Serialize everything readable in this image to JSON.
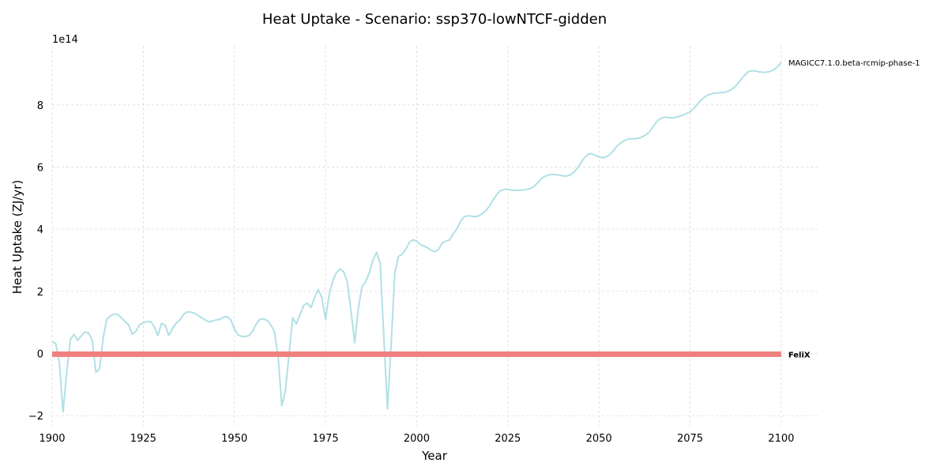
{
  "chart_data": {
    "type": "line",
    "title": "Heat Uptake - Scenario: ssp370-lowNTCF-gidden",
    "xlabel": "Year",
    "ylabel": "Heat Uptake (ZJ/yr)",
    "y_offset_label": "1e14",
    "y_scale": 100000000000000.0,
    "xlim": [
      1900,
      2110
    ],
    "ylim": [
      -2.35,
      9.9
    ],
    "x_ticks": [
      1900,
      1925,
      1950,
      1975,
      2000,
      2025,
      2050,
      2075,
      2100
    ],
    "x_tick_labels": [
      "1900",
      "1925",
      "1950",
      "1975",
      "2000",
      "2025",
      "2050",
      "2075",
      "2100"
    ],
    "y_ticks": [
      -2,
      0,
      2,
      4,
      6,
      8
    ],
    "y_tick_labels": [
      "−2",
      "0",
      "2",
      "4",
      "6",
      "8"
    ],
    "grid": true,
    "series": [
      {
        "name": "MAGICC7.1.0.beta-rcmip-phase-1",
        "color": "#b0e0e6",
        "label_bold": false,
        "points": [
          [
            1900,
            0.38
          ],
          [
            1901,
            0.32
          ],
          [
            1902,
            -0.3
          ],
          [
            1903,
            -1.88
          ],
          [
            1904,
            -0.6
          ],
          [
            1905,
            0.45
          ],
          [
            1906,
            0.62
          ],
          [
            1907,
            0.42
          ],
          [
            1908,
            0.57
          ],
          [
            1909,
            0.7
          ],
          [
            1910,
            0.66
          ],
          [
            1911,
            0.42
          ],
          [
            1912,
            -0.6
          ],
          [
            1913,
            -0.5
          ],
          [
            1914,
            0.5
          ],
          [
            1915,
            1.1
          ],
          [
            1916,
            1.22
          ],
          [
            1917,
            1.27
          ],
          [
            1918,
            1.26
          ],
          [
            1919,
            1.15
          ],
          [
            1920,
            1.03
          ],
          [
            1921,
            0.92
          ],
          [
            1922,
            0.62
          ],
          [
            1923,
            0.72
          ],
          [
            1924,
            0.93
          ],
          [
            1925,
            0.99
          ],
          [
            1926,
            1.03
          ],
          [
            1927,
            1.03
          ],
          [
            1928,
            0.87
          ],
          [
            1929,
            0.58
          ],
          [
            1930,
            0.97
          ],
          [
            1931,
            0.91
          ],
          [
            1932,
            0.58
          ],
          [
            1933,
            0.8
          ],
          [
            1934,
            0.97
          ],
          [
            1935,
            1.08
          ],
          [
            1936,
            1.25
          ],
          [
            1937,
            1.34
          ],
          [
            1938,
            1.33
          ],
          [
            1939,
            1.3
          ],
          [
            1940,
            1.23
          ],
          [
            1941,
            1.15
          ],
          [
            1942,
            1.08
          ],
          [
            1943,
            1.02
          ],
          [
            1944,
            1.05
          ],
          [
            1945,
            1.08
          ],
          [
            1946,
            1.1
          ],
          [
            1947,
            1.17
          ],
          [
            1948,
            1.19
          ],
          [
            1949,
            1.08
          ],
          [
            1950,
            0.8
          ],
          [
            1951,
            0.6
          ],
          [
            1952,
            0.55
          ],
          [
            1953,
            0.55
          ],
          [
            1954,
            0.58
          ],
          [
            1955,
            0.72
          ],
          [
            1956,
            0.95
          ],
          [
            1957,
            1.1
          ],
          [
            1958,
            1.12
          ],
          [
            1959,
            1.06
          ],
          [
            1960,
            0.92
          ],
          [
            1961,
            0.7
          ],
          [
            1962,
            -0.1
          ],
          [
            1963,
            -1.68
          ],
          [
            1964,
            -1.2
          ],
          [
            1965,
            0.0
          ],
          [
            1966,
            1.15
          ],
          [
            1967,
            0.95
          ],
          [
            1968,
            1.25
          ],
          [
            1969,
            1.55
          ],
          [
            1970,
            1.62
          ],
          [
            1971,
            1.48
          ],
          [
            1972,
            1.8
          ],
          [
            1973,
            2.06
          ],
          [
            1974,
            1.8
          ],
          [
            1975,
            1.1
          ],
          [
            1976,
            1.9
          ],
          [
            1977,
            2.35
          ],
          [
            1978,
            2.6
          ],
          [
            1979,
            2.72
          ],
          [
            1980,
            2.63
          ],
          [
            1981,
            2.3
          ],
          [
            1982,
            1.35
          ],
          [
            1983,
            0.35
          ],
          [
            1984,
            1.45
          ],
          [
            1985,
            2.15
          ],
          [
            1986,
            2.3
          ],
          [
            1987,
            2.6
          ],
          [
            1988,
            3.0
          ],
          [
            1989,
            3.26
          ],
          [
            1990,
            2.9
          ],
          [
            1991,
            0.5
          ],
          [
            1992,
            -1.78
          ],
          [
            1993,
            0.3
          ],
          [
            1994,
            2.6
          ],
          [
            1995,
            3.12
          ],
          [
            1996,
            3.2
          ],
          [
            1997,
            3.35
          ],
          [
            1998,
            3.58
          ],
          [
            1999,
            3.66
          ],
          [
            2000,
            3.62
          ],
          [
            2001,
            3.5
          ],
          [
            2002,
            3.46
          ],
          [
            2003,
            3.4
          ],
          [
            2004,
            3.32
          ],
          [
            2005,
            3.28
          ],
          [
            2006,
            3.35
          ],
          [
            2007,
            3.55
          ],
          [
            2008,
            3.62
          ],
          [
            2009,
            3.65
          ],
          [
            2010,
            3.85
          ],
          [
            2011,
            4.0
          ],
          [
            2012,
            4.25
          ],
          [
            2013,
            4.4
          ],
          [
            2014,
            4.43
          ],
          [
            2015,
            4.42
          ],
          [
            2016,
            4.4
          ],
          [
            2017,
            4.43
          ],
          [
            2018,
            4.5
          ],
          [
            2019,
            4.6
          ],
          [
            2020,
            4.75
          ],
          [
            2021,
            4.95
          ],
          [
            2022,
            5.12
          ],
          [
            2023,
            5.24
          ],
          [
            2024,
            5.28
          ],
          [
            2025,
            5.28
          ],
          [
            2026,
            5.26
          ],
          [
            2027,
            5.25
          ],
          [
            2028,
            5.25
          ],
          [
            2029,
            5.26
          ],
          [
            2030,
            5.28
          ],
          [
            2031,
            5.3
          ],
          [
            2032,
            5.36
          ],
          [
            2033,
            5.47
          ],
          [
            2034,
            5.6
          ],
          [
            2035,
            5.69
          ],
          [
            2036,
            5.74
          ],
          [
            2037,
            5.76
          ],
          [
            2038,
            5.76
          ],
          [
            2039,
            5.74
          ],
          [
            2040,
            5.72
          ],
          [
            2041,
            5.71
          ],
          [
            2042,
            5.74
          ],
          [
            2043,
            5.82
          ],
          [
            2044,
            5.95
          ],
          [
            2045,
            6.12
          ],
          [
            2046,
            6.3
          ],
          [
            2047,
            6.4
          ],
          [
            2048,
            6.43
          ],
          [
            2049,
            6.38
          ],
          [
            2050,
            6.32
          ],
          [
            2051,
            6.3
          ],
          [
            2052,
            6.33
          ],
          [
            2053,
            6.4
          ],
          [
            2054,
            6.53
          ],
          [
            2055,
            6.68
          ],
          [
            2056,
            6.78
          ],
          [
            2057,
            6.85
          ],
          [
            2058,
            6.9
          ],
          [
            2059,
            6.91
          ],
          [
            2060,
            6.91
          ],
          [
            2061,
            6.93
          ],
          [
            2062,
            6.98
          ],
          [
            2063,
            7.05
          ],
          [
            2064,
            7.15
          ],
          [
            2065,
            7.32
          ],
          [
            2066,
            7.48
          ],
          [
            2067,
            7.57
          ],
          [
            2068,
            7.6
          ],
          [
            2069,
            7.6
          ],
          [
            2070,
            7.58
          ],
          [
            2071,
            7.6
          ],
          [
            2072,
            7.63
          ],
          [
            2073,
            7.67
          ],
          [
            2074,
            7.72
          ],
          [
            2075,
            7.78
          ],
          [
            2076,
            7.88
          ],
          [
            2077,
            8.02
          ],
          [
            2078,
            8.15
          ],
          [
            2079,
            8.25
          ],
          [
            2080,
            8.32
          ],
          [
            2081,
            8.36
          ],
          [
            2082,
            8.38
          ],
          [
            2083,
            8.39
          ],
          [
            2084,
            8.4
          ],
          [
            2085,
            8.42
          ],
          [
            2086,
            8.47
          ],
          [
            2087,
            8.55
          ],
          [
            2088,
            8.67
          ],
          [
            2089,
            8.82
          ],
          [
            2090,
            8.96
          ],
          [
            2091,
            9.07
          ],
          [
            2092,
            9.1
          ],
          [
            2093,
            9.09
          ],
          [
            2094,
            9.06
          ],
          [
            2095,
            9.05
          ],
          [
            2096,
            9.05
          ],
          [
            2097,
            9.08
          ],
          [
            2098,
            9.13
          ],
          [
            2099,
            9.23
          ],
          [
            2100,
            9.36
          ]
        ]
      },
      {
        "name": "FeliX",
        "color": "#f08080",
        "label_bold": true,
        "points": [
          [
            1900,
            -0.02
          ],
          [
            2100,
            -0.02
          ]
        ]
      }
    ]
  }
}
